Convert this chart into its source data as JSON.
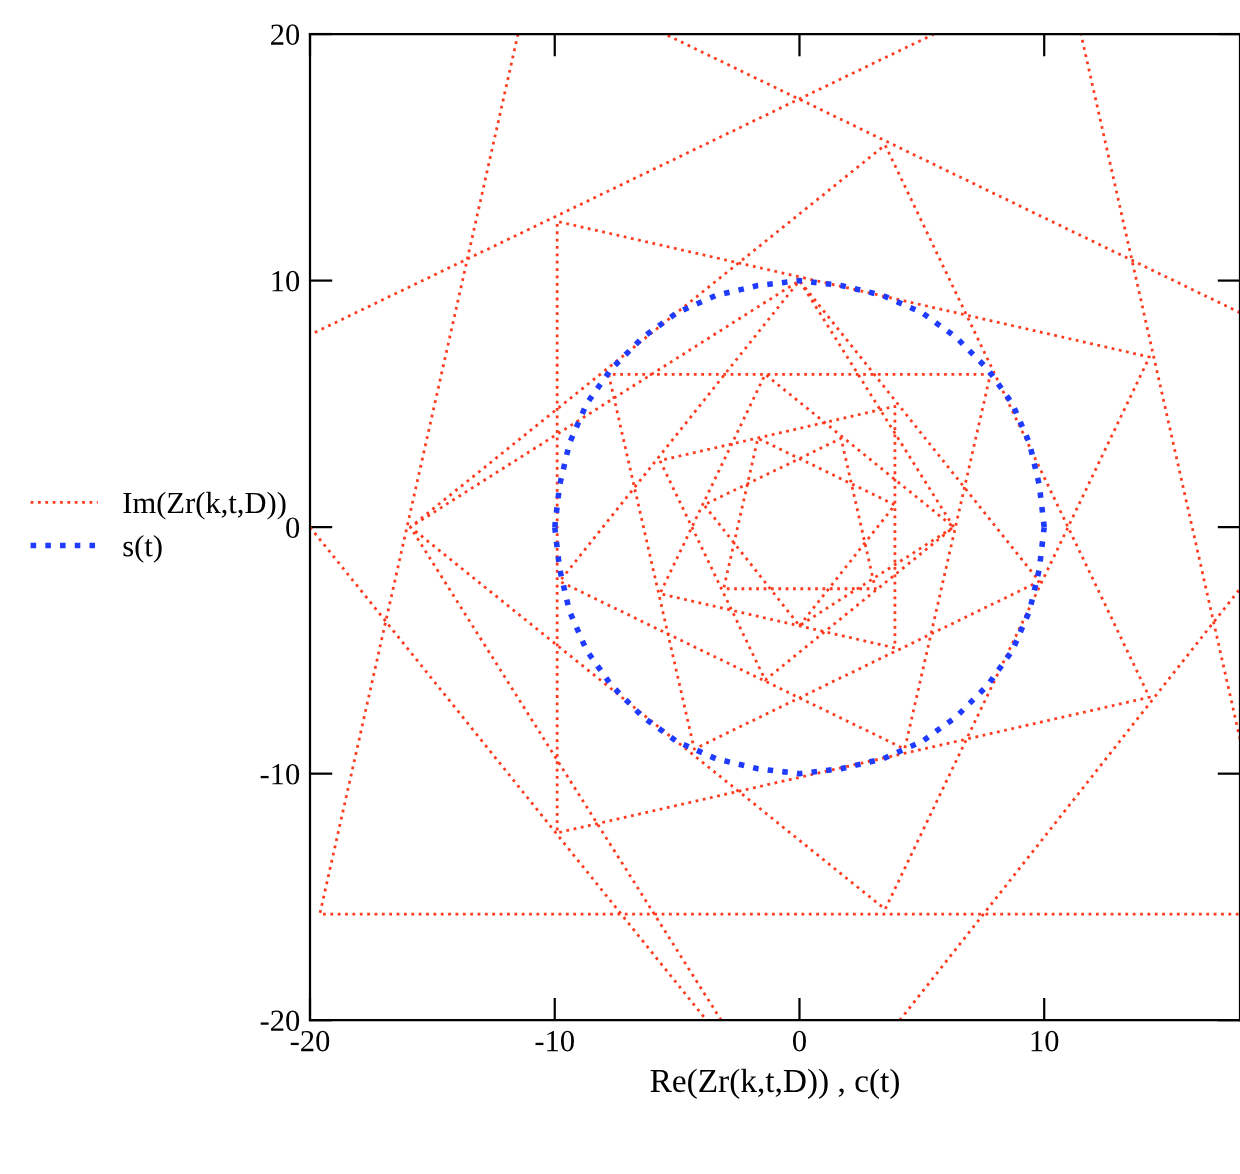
{
  "chart_data": {
    "type": "line",
    "xlabel": "Re(Zr(k,t,D)) , c(t)",
    "xlim": [
      -20,
      18
    ],
    "ylim": [
      -20,
      20
    ],
    "xticks": [
      -20,
      -10,
      0,
      10
    ],
    "yticks": [
      -20,
      -10,
      0,
      10,
      20
    ],
    "grid": false,
    "legend": "left",
    "marker": "none",
    "series": [
      {
        "name": "Im(Zr(k,t,D))",
        "color": "#ff3b1f",
        "line_style": "dotted",
        "x": [
          0,
          3.9,
          -1.7,
          -3.1,
          3.1,
          1.7,
          -3.9,
          0,
          6.3,
          -1.4,
          -5.7,
          3.9,
          3.9,
          -5.7,
          -1.4,
          6.3,
          0,
          -9.8,
          4.3,
          7.8,
          -7.8,
          -4.3,
          9.8,
          0,
          -15.9,
          3.5,
          14.3,
          -9.9,
          -9.9,
          14.3,
          3.5,
          -15.9,
          -3.2,
          null,
          4.1,
          18,
          null,
          18,
          -5.5,
          null,
          -11.5,
          -19.6,
          18,
          null,
          18,
          11.5,
          null,
          5.5,
          -20,
          null,
          -20,
          -3.8
        ],
        "values": [
          -4,
          0.9,
          3.6,
          -2.5,
          -2.5,
          3.6,
          0.9,
          -4,
          0,
          6.2,
          -2.7,
          -4.9,
          4.9,
          2.7,
          -6.2,
          0,
          10,
          -2.2,
          -9,
          6.2,
          6.2,
          -9,
          -2.2,
          10,
          0,
          -15.5,
          6.9,
          12.4,
          -12.4,
          -6.9,
          15.5,
          0,
          -20,
          null,
          -20,
          -2.5,
          null,
          8.7,
          20,
          null,
          20,
          -15.7,
          -15.7,
          null,
          -8.6,
          20,
          null,
          20,
          7.8,
          null,
          0,
          -20
        ]
      },
      {
        "name": "s(t)",
        "color": "#1f3bff",
        "line_style": "dotted",
        "x": [
          10,
          9.8,
          9.4,
          8.7,
          7.7,
          6.4,
          5,
          3.4,
          1.7,
          0,
          -1.7,
          -3.4,
          -5,
          -6.4,
          -7.7,
          -8.7,
          -9.4,
          -9.8,
          -10,
          null,
          -10,
          -9.8,
          -9.4,
          -8.7,
          -7.7,
          -6.4,
          -5,
          -3.4,
          -1.7,
          0,
          1.7,
          3.4,
          5,
          6.4,
          7.7,
          8.7,
          9.4,
          9.8,
          10
        ],
        "values": [
          0,
          1.7,
          3.4,
          5,
          6.4,
          7.7,
          8.7,
          9.4,
          9.8,
          10,
          9.8,
          9.4,
          8.7,
          7.7,
          6.4,
          5,
          3.4,
          1.7,
          0,
          null,
          0,
          -1.7,
          -3.4,
          -5,
          -6.4,
          -7.7,
          -8.7,
          -9.4,
          -9.8,
          -10,
          -9.8,
          -9.4,
          -8.7,
          -7.7,
          -6.4,
          -5,
          -3.4,
          -1.7,
          0
        ]
      }
    ]
  }
}
